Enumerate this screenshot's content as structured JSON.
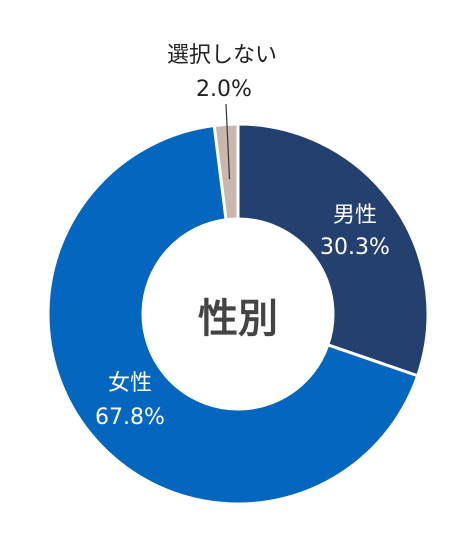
{
  "chart_data": {
    "type": "pie",
    "donut": true,
    "center_label": "性別",
    "slices": [
      {
        "label": "男性",
        "value": 30.3,
        "value_text": "30.3%",
        "color": "#24406f"
      },
      {
        "label": "女性",
        "value": 67.8,
        "value_text": "67.8%",
        "color": "#0566c0"
      },
      {
        "label": "選択しない",
        "value": 2.0,
        "value_text": "2.0%",
        "color": "#c9b6ae"
      }
    ]
  }
}
